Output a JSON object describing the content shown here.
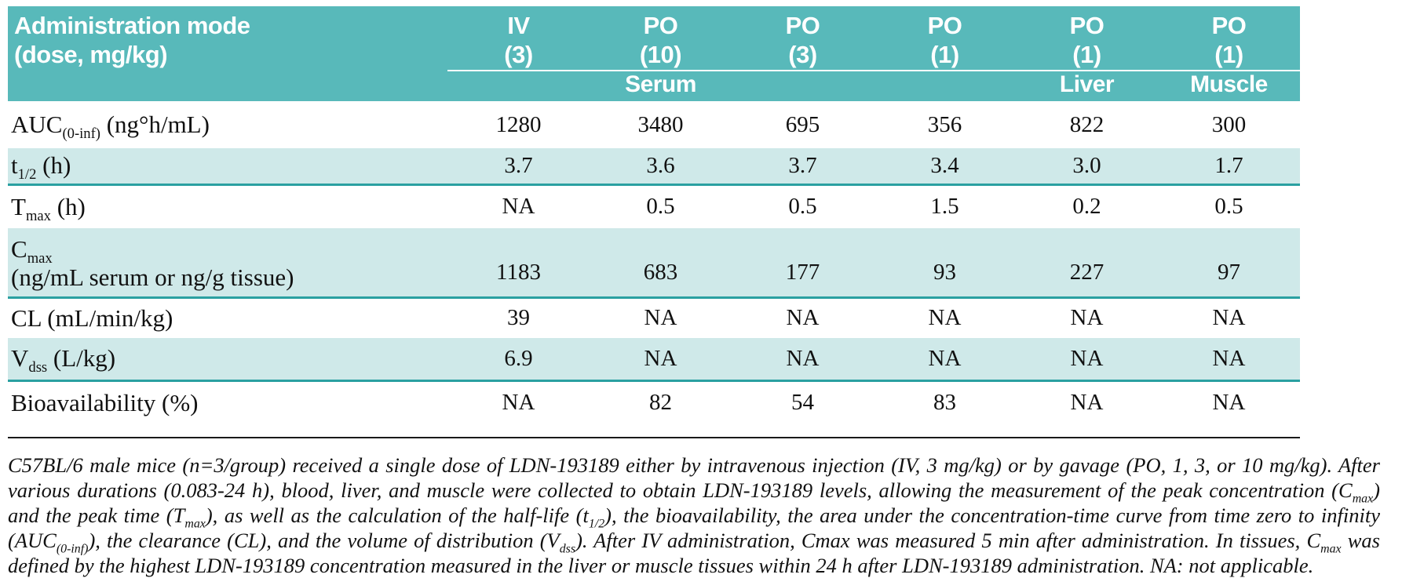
{
  "colors": {
    "header_bg": "#58b9ba",
    "row_tint": "#cfe9e9",
    "rule_teal": "#2aa0a1",
    "divider": "#1a1a1a",
    "header_text": "#ffffff"
  },
  "table": {
    "header": {
      "title_line1": "Administration mode",
      "title_line2": "(dose, mg/kg)"
    },
    "columns": [
      {
        "mode": "IV",
        "dose": "(3)"
      },
      {
        "mode": "PO",
        "dose": "(10)"
      },
      {
        "mode": "PO",
        "dose": "(3)"
      },
      {
        "mode": "PO",
        "dose": "(1)"
      },
      {
        "mode": "PO",
        "dose": "(1)"
      },
      {
        "mode": "PO",
        "dose": "(1)"
      }
    ],
    "tissue_row": [
      "",
      "Serum",
      "",
      "",
      "Liver",
      "Muscle"
    ],
    "rows": [
      {
        "label_html": "AUC<sub>(0-inf)</sub> (ng°h/mL)",
        "values": [
          "1280",
          "3480",
          "695",
          "356",
          "822",
          "300"
        ]
      },
      {
        "label_html": "t<sub>1/2</sub> (h)",
        "values": [
          "3.7",
          "3.6",
          "3.7",
          "3.4",
          "3.0",
          "1.7"
        ]
      },
      {
        "label_html": "T<sub>max</sub> (h)",
        "values": [
          "NA",
          "0.5",
          "0.5",
          "1.5",
          "0.2",
          "0.5"
        ]
      },
      {
        "label_html": "C<sub>max</sub><br>(ng/mL serum or ng/g tissue)",
        "values": [
          "1183",
          "683",
          "177",
          "93",
          "227",
          "97"
        ]
      },
      {
        "label_html": "CL (mL/min/kg)",
        "values": [
          "39",
          "NA",
          "NA",
          "NA",
          "NA",
          "NA"
        ]
      },
      {
        "label_html": "V<sub>dss</sub> (L/kg)",
        "values": [
          "6.9",
          "NA",
          "NA",
          "NA",
          "NA",
          "NA"
        ]
      },
      {
        "label_html": "Bioavailability (%)",
        "values": [
          "NA",
          "82",
          "54",
          "83",
          "NA",
          "NA"
        ]
      }
    ]
  },
  "footnote_html": "C57BL/6 male mice (n=3/group) received a single dose of LDN-193189 either by intravenous injection (IV, 3 mg/kg) or by gavage (PO, 1, 3, or 10 mg/kg). After various durations (0.083-24 h), blood, liver, and muscle were collected to obtain LDN-193189 levels, allowing the measurement of the peak concentration (C<sub>max</sub>) and the peak time (T<sub>max</sub>), as well as the calculation of the half-life (t<sub>1/2</sub>), the bioavailability, the area under the concentration-time curve from time zero to infinity (AUC<sub>(0-inf)</sub>), the clearance (CL), and the volume of distribution (V<sub>dss</sub>). After IV administration, Cmax was measured 5 min after administration. In tissues, C<sub>max</sub> was defined by the highest LDN-193189 concentration measured in the liver or muscle tissues within 24 h after LDN-193189 administration. NA: not applicable."
}
